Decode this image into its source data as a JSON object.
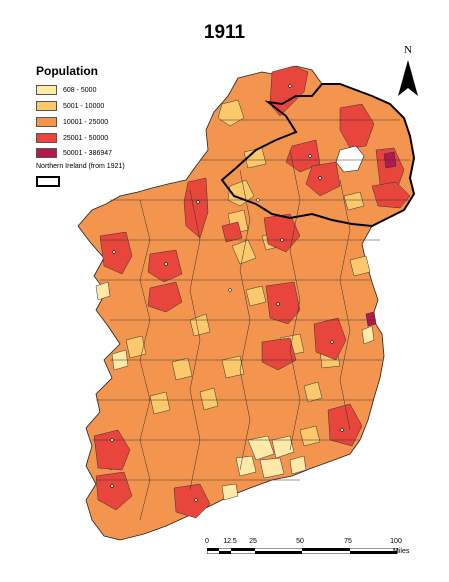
{
  "map": {
    "title": "1911",
    "legend": {
      "title": "Population",
      "classes": [
        {
          "label": "608 - 5000",
          "color": "#fde9a8"
        },
        {
          "label": "5001 - 10000",
          "color": "#fbc86b"
        },
        {
          "label": "10001 - 25000",
          "color": "#f4954f"
        },
        {
          "label": "25001 - 50000",
          "color": "#e8453d"
        },
        {
          "label": "50001 - 386947",
          "color": "#b3194d"
        }
      ],
      "ni_label": "Northern Ireland (from 1921)"
    },
    "north_arrow": {
      "label": "N"
    },
    "scale": {
      "ticks": [
        "0",
        "12.5",
        "25",
        "50",
        "75",
        "100"
      ],
      "units": "Miles"
    }
  }
}
